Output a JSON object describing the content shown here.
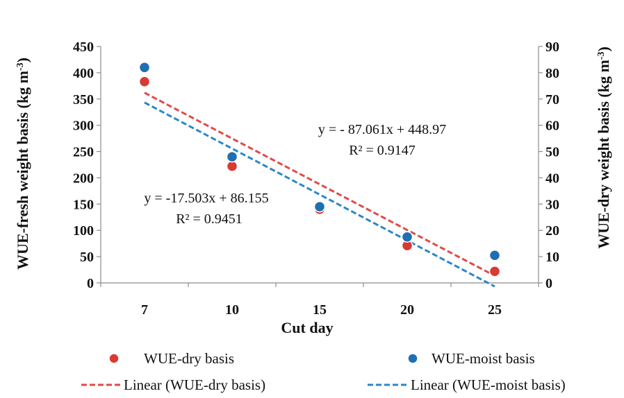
{
  "chart_data": {
    "type": "scatter",
    "xlabel": "Cut day",
    "ylabel_left": "WUE-fresh weight basis (kg m",
    "ylabel_right": "WUE-dry weight basis (kg m",
    "ylabel_sup": "-3",
    "ylabel_close": ")",
    "categories": [
      "7",
      "10",
      "15",
      "20",
      "25"
    ],
    "y_left_ticks": [
      "0",
      "50",
      "100",
      "150",
      "200",
      "250",
      "300",
      "350",
      "400",
      "450"
    ],
    "y_right_ticks": [
      "0",
      "10",
      "20",
      "30",
      "40",
      "50",
      "60",
      "70",
      "80",
      "90"
    ],
    "ylim_left": [
      0,
      450
    ],
    "ylim_right": [
      0,
      90
    ],
    "series": [
      {
        "name": "WUE-dry basis",
        "axis": "left",
        "color": "#d93a32",
        "values": [
          383,
          222,
          140,
          71,
          22
        ],
        "trendline": {
          "name": "Linear (WUE-dry basis)",
          "slope": -87.061,
          "intercept": 448.97,
          "style": "dashed"
        }
      },
      {
        "name": "WUE-moist basis",
        "axis": "right",
        "color": "#1f6fb4",
        "values": [
          82,
          48,
          29,
          17.5,
          10.5
        ],
        "trendline": {
          "name": "Linear (WUE-moist basis)",
          "slope": -17.503,
          "intercept": 86.155,
          "style": "dashed"
        }
      }
    ],
    "annotations": [
      {
        "line1": "y = - 87.061x + 448.97",
        "line2": "R² = 0.9147"
      },
      {
        "line1": "y = -17.503x + 86.155",
        "line2": "R² = 0.9451"
      }
    ],
    "legend": [
      {
        "label": "WUE-dry basis",
        "kind": "marker",
        "color": "#d93a32"
      },
      {
        "label": "WUE-moist basis",
        "kind": "marker",
        "color": "#1f6fb4"
      },
      {
        "label": "Linear (WUE-dry basis)",
        "kind": "line",
        "color": "#e04a48"
      },
      {
        "label": "Linear (WUE-moist basis)",
        "kind": "line",
        "color": "#2a86c8"
      }
    ],
    "grid": false,
    "legend_position": "bottom"
  }
}
